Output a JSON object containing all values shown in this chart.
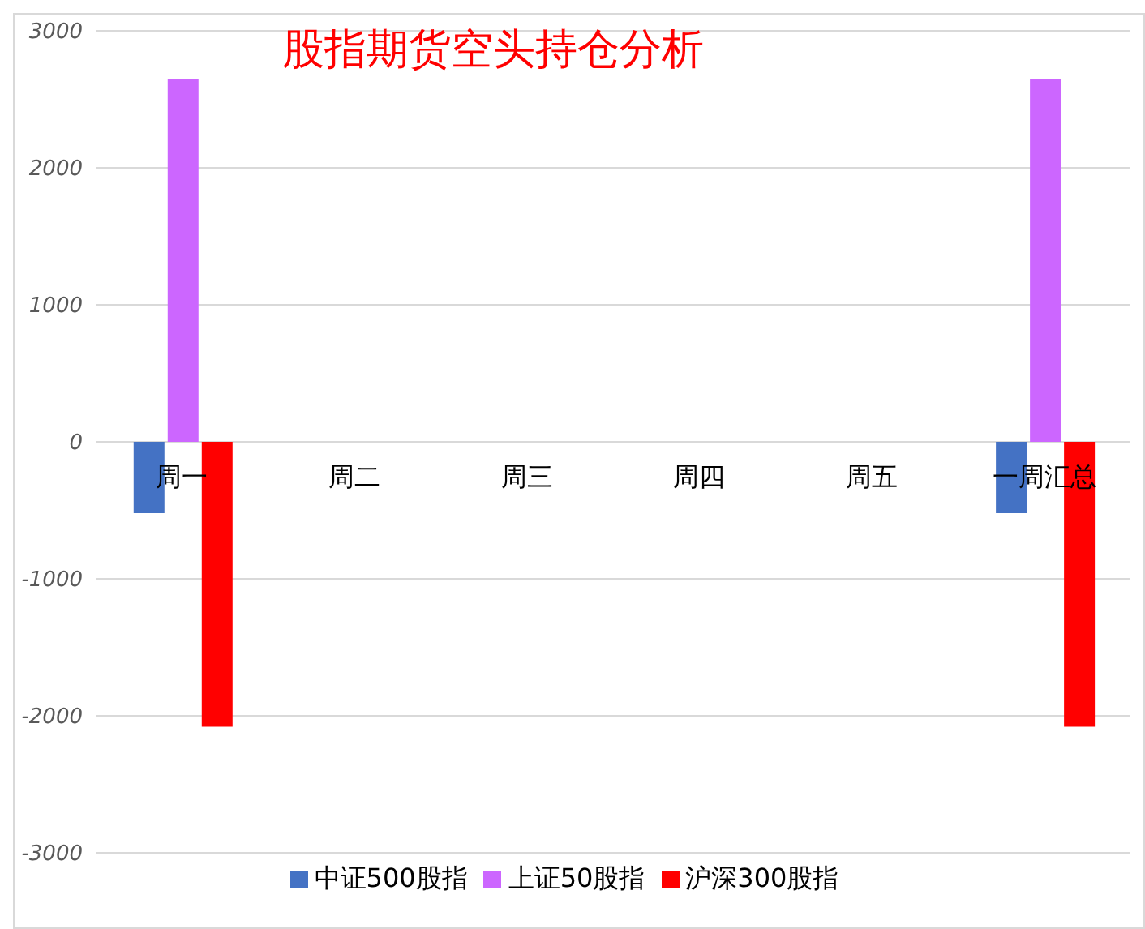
{
  "chart_data": {
    "type": "bar",
    "title": "股指期货空头持仓分析",
    "categories": [
      "周一",
      "周二",
      "周三",
      "周四",
      "周五",
      "一周汇总"
    ],
    "series": [
      {
        "name": "中证500股指",
        "color": "#4472c4",
        "values": [
          -520,
          null,
          null,
          null,
          null,
          -520
        ]
      },
      {
        "name": "上证50股指",
        "color": "#cc66ff",
        "values": [
          2650,
          null,
          null,
          null,
          null,
          2650
        ]
      },
      {
        "name": "沪深300股指",
        "color": "#ff0000",
        "values": [
          -2080,
          null,
          null,
          null,
          null,
          -2080
        ]
      }
    ],
    "ylim": [
      -3000,
      3000
    ],
    "yticks": [
      -3000,
      -2000,
      -1000,
      0,
      1000,
      2000,
      3000
    ],
    "grid": "y",
    "legend": "bottom"
  }
}
